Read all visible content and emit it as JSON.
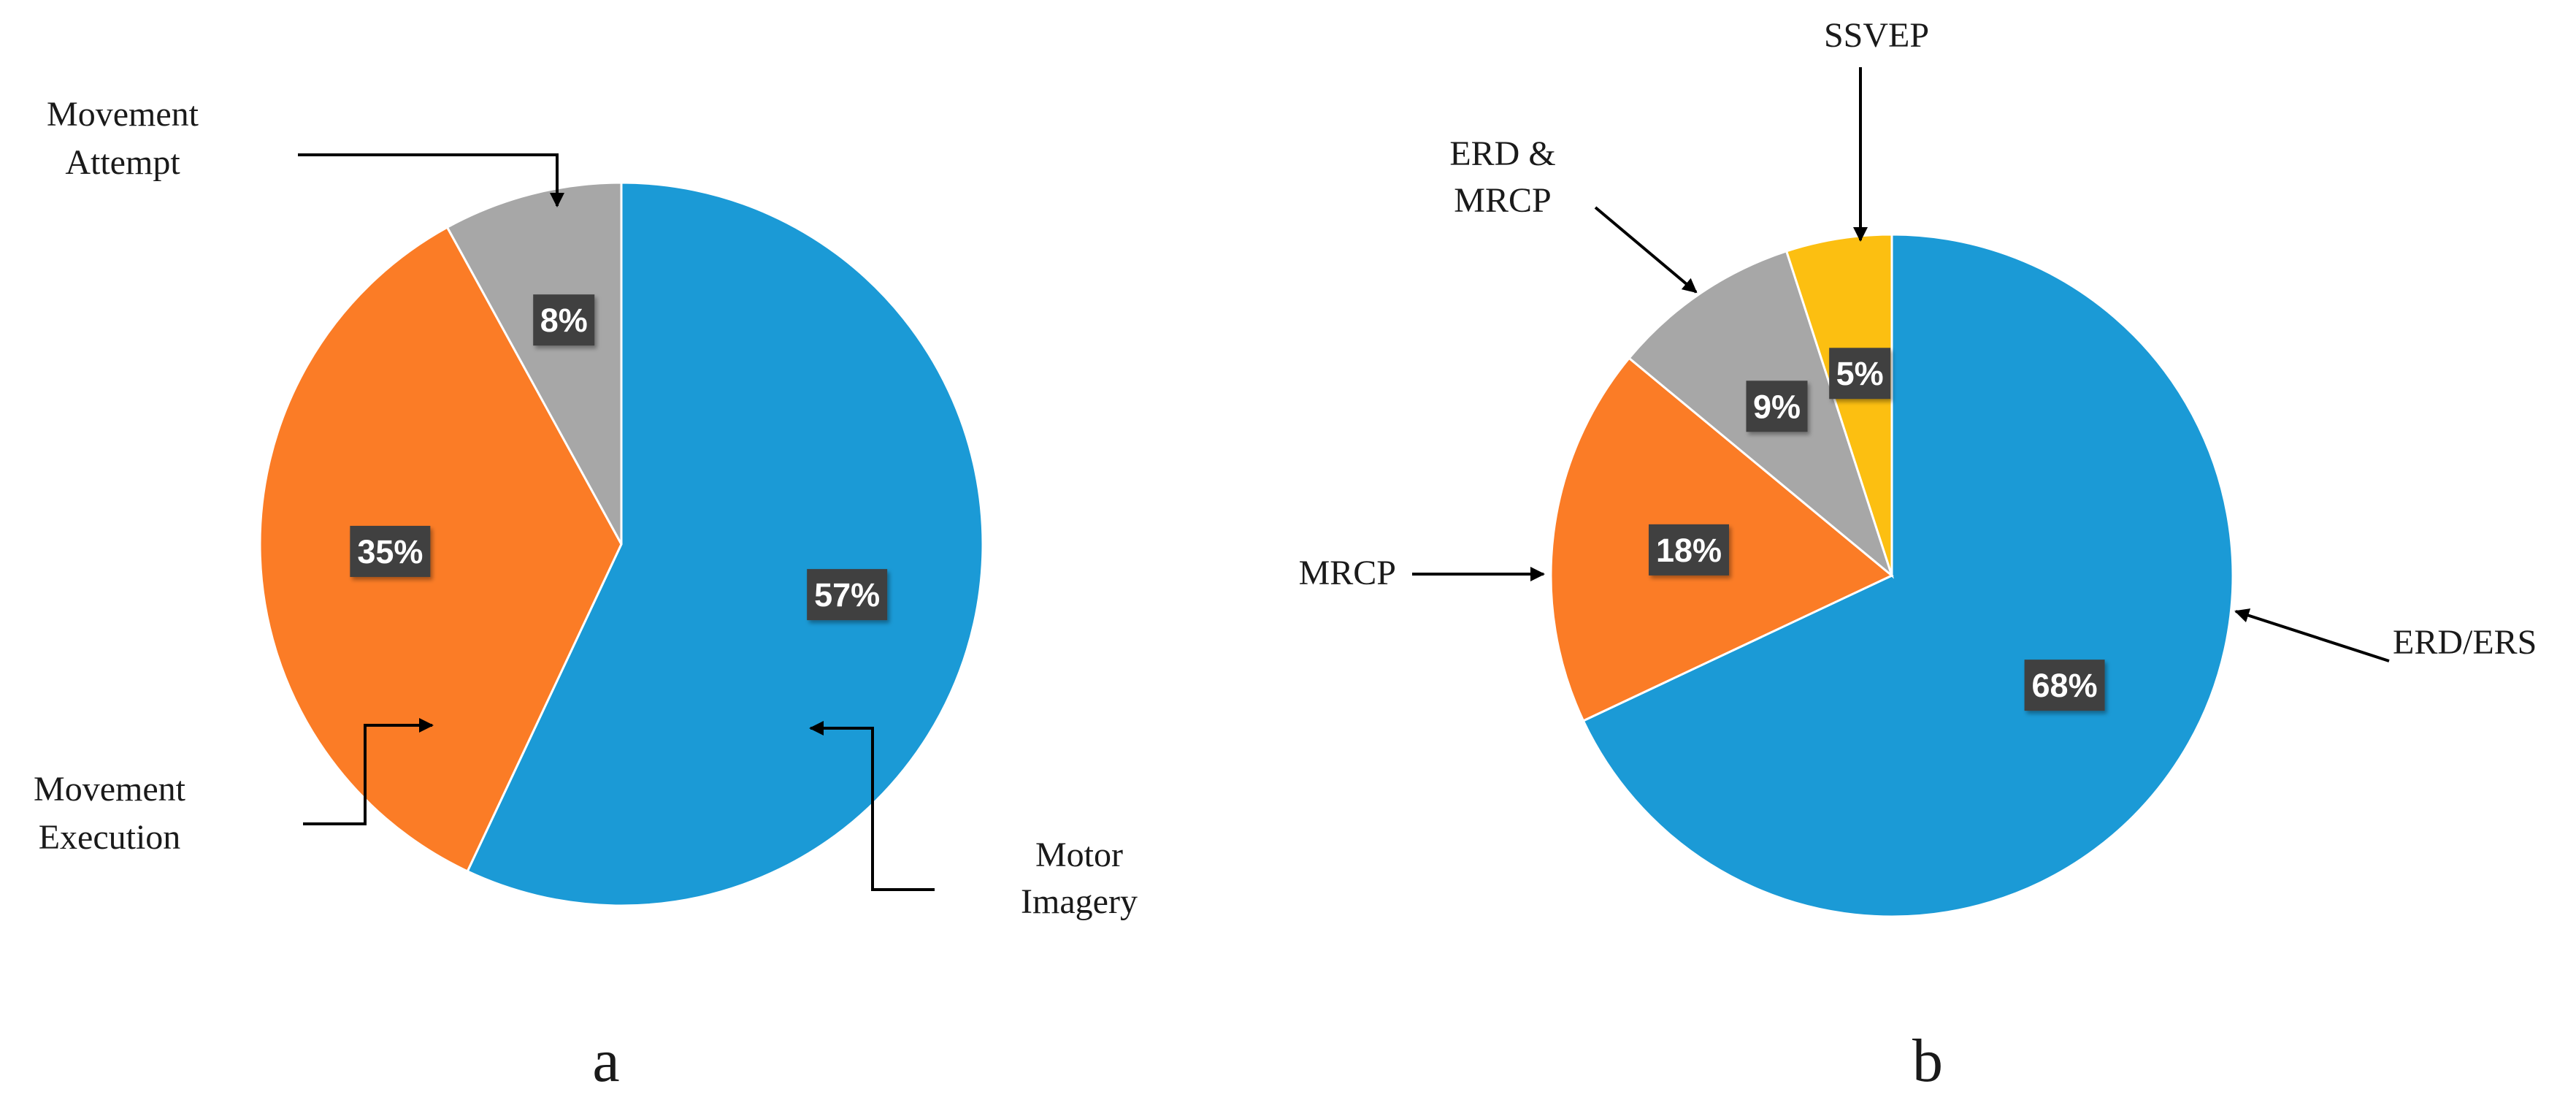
{
  "colors": {
    "blue": "#1b9ad6",
    "orange": "#fb7c26",
    "gray": "#a7a7a7",
    "yellow": "#fcbf11",
    "label_box": "#404040",
    "arrow": "#000000"
  },
  "chart_data": [
    {
      "type": "pie",
      "panel": "a",
      "title": "",
      "slices": [
        {
          "label": "Motor Imagery",
          "lines": [
            "Motor",
            "Imagery"
          ],
          "value": 57,
          "pct_label": "57%",
          "color": "#1b9ad6"
        },
        {
          "label": "Movement Execution",
          "lines": [
            "Movement",
            "Execution"
          ],
          "value": 35,
          "pct_label": "35%",
          "color": "#fb7c26"
        },
        {
          "label": "Movement Attempt",
          "lines": [
            "Movement",
            "Attempt"
          ],
          "value": 8,
          "pct_label": "8%",
          "color": "#a7a7a7"
        }
      ]
    },
    {
      "type": "pie",
      "panel": "b",
      "title": "",
      "slices": [
        {
          "label": "ERD/ERS",
          "lines": [
            "ERD/ERS"
          ],
          "value": 68,
          "pct_label": "68%",
          "color": "#1b9ad6"
        },
        {
          "label": "MRCP",
          "lines": [
            "MRCP"
          ],
          "value": 18,
          "pct_label": "18%",
          "color": "#fb7c26"
        },
        {
          "label": "ERD & MRCP",
          "lines": [
            "ERD &",
            "MRCP"
          ],
          "value": 9,
          "pct_label": "9%",
          "color": "#a7a7a7"
        },
        {
          "label": "SSVEP",
          "lines": [
            "SSVEP"
          ],
          "value": 5,
          "pct_label": "5%",
          "color": "#fcbf11"
        }
      ]
    }
  ]
}
